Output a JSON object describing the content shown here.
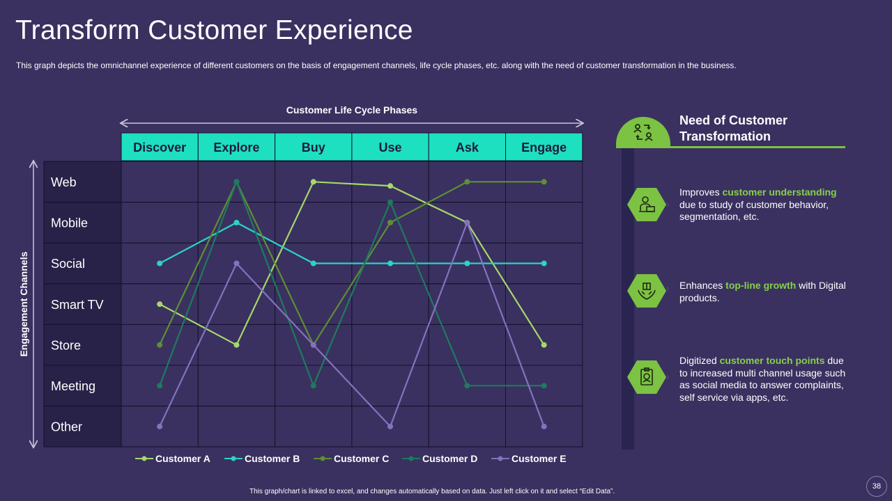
{
  "page": {
    "title": "Transform Customer Experience",
    "subtitle": "This graph depicts the omnichannel experience of different customers on the basis of engagement channels, life cycle phases, etc. along with the need of customer transformation in the business.",
    "footer": "This graph/chart is linked to excel, and changes automatically based on data. Just left click on it and select “Edit Data”.",
    "page_number": "38"
  },
  "chart_data": {
    "type": "line",
    "title": "Customer Life Cycle Phases",
    "xlabel": "Customer Life Cycle Phases",
    "ylabel": "Engagement Channels",
    "x": [
      "Discover",
      "Explore",
      "Buy",
      "Use",
      "Ask",
      "Engage"
    ],
    "y_categories": [
      "Web",
      "Mobile",
      "Social",
      "Smart TV",
      "Store",
      "Meeting",
      "Other"
    ],
    "ylim": [
      0,
      6
    ],
    "y_inverted": true,
    "legend_position": "bottom",
    "series": [
      {
        "name": "Customer A",
        "color": "#a6d86a",
        "values": [
          3,
          4,
          0,
          0.1,
          1,
          4
        ]
      },
      {
        "name": "Customer B",
        "color": "#2bd4c4",
        "values": [
          2,
          1,
          2,
          2,
          2,
          2
        ]
      },
      {
        "name": "Customer C",
        "color": "#5f8e35",
        "values": [
          4,
          0,
          4,
          1,
          0,
          0
        ]
      },
      {
        "name": "Customer D",
        "color": "#1f7a5e",
        "values": [
          5,
          0,
          5,
          0.5,
          5,
          5
        ]
      },
      {
        "name": "Customer E",
        "color": "#8472bf",
        "values": [
          6,
          2,
          4,
          6,
          1,
          6
        ]
      }
    ],
    "header_color": "#1de0c0",
    "row_label_bg": "#282148",
    "cell_bg": "#3a3160",
    "grid_color": "#14112a"
  },
  "panel": {
    "heading": "Need of Customer Transformation",
    "accent": "#7cc243",
    "items": [
      {
        "icon": "person-laptop-icon",
        "before": "Improves ",
        "highlight": "customer understanding",
        "after": " due to study of customer behavior, segmentation, etc."
      },
      {
        "icon": "hands-box-icon",
        "before": "Enhances ",
        "highlight": "top-line growth",
        "after": " with Digital products."
      },
      {
        "icon": "id-badge-icon",
        "before": "Digitized ",
        "highlight": "customer touch points",
        "after": " due to increased multi channel usage such as social media to answer complaints, self service via apps, etc."
      }
    ]
  }
}
